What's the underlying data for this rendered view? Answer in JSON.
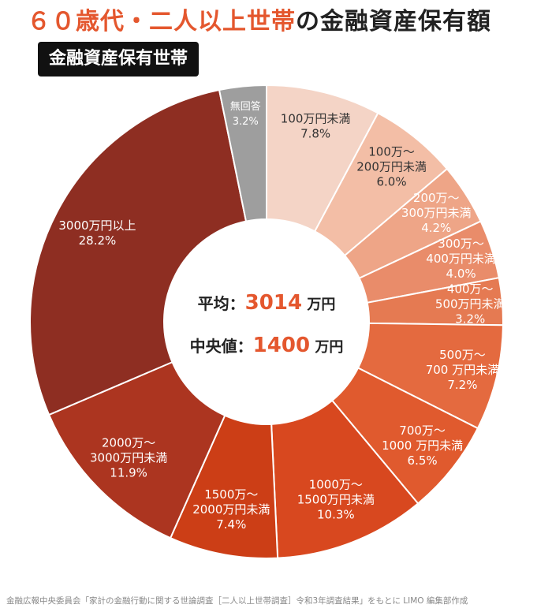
{
  "header": {
    "title_accent": "６０歳代・二人以上世帯",
    "title_rest": "の金融資産保有額",
    "badge": "金融資産保有世帯"
  },
  "center": {
    "mean_label": "平均：",
    "mean_value": "3014",
    "median_label": "中央値：",
    "median_value": "1400",
    "unit": "万円"
  },
  "footer": {
    "source": "金融広報中央委員会「家計の金融行動に関する世論調査［二人以上世帯調査］令和3年調査結果」をもとに LIMO 編集部作成"
  },
  "colors": {
    "accent": "#e4572e"
  },
  "chart_data": {
    "type": "pie",
    "donut": true,
    "start": "12 o'clock",
    "direction": "clockwise",
    "unit": "%",
    "slices": [
      {
        "label": [
          "100万円未満"
        ],
        "value": 7.8,
        "value_label": "7.8%",
        "color": "#f4d4c6"
      },
      {
        "label": [
          "100万～",
          "200万円未満"
        ],
        "value": 6.0,
        "value_label": "6.0%",
        "color": "#f3bea6"
      },
      {
        "label": [
          "200万～",
          "300万円未満"
        ],
        "value": 4.2,
        "value_label": "4.2%",
        "color": "#eea587"
      },
      {
        "label": [
          "300万～",
          "400万円未満"
        ],
        "value": 4.0,
        "value_label": "4.0%",
        "color": "#e98c6a"
      },
      {
        "label": [
          "400万～",
          "500万円未満"
        ],
        "value": 3.2,
        "value_label": "3.2%",
        "color": "#e57a52"
      },
      {
        "label": [
          "500万～",
          "700 万円未満"
        ],
        "value": 7.2,
        "value_label": "7.2%",
        "color": "#e46a3f"
      },
      {
        "label": [
          "700万～",
          "1000 万円未満"
        ],
        "value": 6.5,
        "value_label": "6.5%",
        "color": "#e05a2e"
      },
      {
        "label": [
          "1000万～",
          "1500万円未満"
        ],
        "value": 10.3,
        "value_label": "10.3%",
        "color": "#d8481f"
      },
      {
        "label": [
          "1500万～",
          "2000万円未満"
        ],
        "value": 7.4,
        "value_label": "7.4%",
        "color": "#cc3e16"
      },
      {
        "label": [
          "2000万～",
          "3000万円未満"
        ],
        "value": 11.9,
        "value_label": "11.9%",
        "color": "#ac3520"
      },
      {
        "label": [
          "3000万円以上"
        ],
        "value": 28.2,
        "value_label": "28.2%",
        "color": "#8e2e22"
      },
      {
        "label": [
          "無回答"
        ],
        "value": 3.2,
        "value_label": "3.2%",
        "color": "#9e9e9e"
      }
    ]
  }
}
